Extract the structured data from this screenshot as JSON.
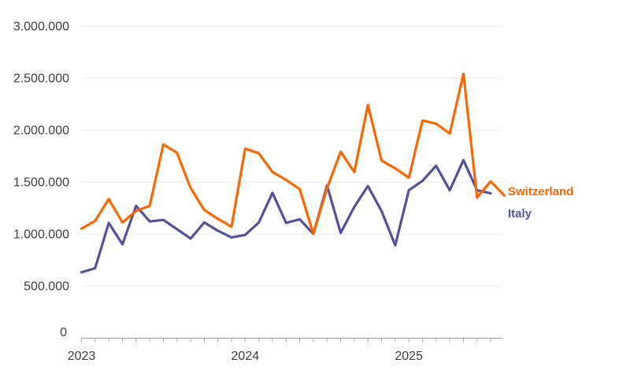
{
  "chart_data": {
    "type": "line",
    "title": "",
    "x_unit": "month",
    "x": [
      "2023-01",
      "2023-02",
      "2023-03",
      "2023-04",
      "2023-05",
      "2023-06",
      "2023-07",
      "2023-08",
      "2023-09",
      "2023-10",
      "2023-11",
      "2023-12",
      "2024-01",
      "2024-02",
      "2024-03",
      "2024-04",
      "2024-05",
      "2024-06",
      "2024-07",
      "2024-08",
      "2024-09",
      "2024-10",
      "2024-11",
      "2024-12",
      "2025-01",
      "2025-02",
      "2025-03",
      "2025-04",
      "2025-05",
      "2025-06",
      "2025-07",
      "2025-08"
    ],
    "series": [
      {
        "name": "Switzerland",
        "color": "#f96702",
        "values": [
          1050000,
          1125000,
          1335000,
          1110000,
          1220000,
          1270000,
          1860000,
          1780000,
          1440000,
          1230000,
          1145000,
          1070000,
          1820000,
          1775000,
          1595000,
          1520000,
          1430000,
          1000000,
          1440000,
          1790000,
          1595000,
          2240000,
          1705000,
          1630000,
          1540000,
          2090000,
          2060000,
          1965000,
          2540000,
          1350000,
          1505000,
          1370000
        ]
      },
      {
        "name": "Italy",
        "color": "#52519e",
        "values": [
          630000,
          670000,
          1105000,
          900000,
          1270000,
          1120000,
          1135000,
          1045000,
          955000,
          1110000,
          1030000,
          965000,
          990000,
          1110000,
          1395000,
          1105000,
          1140000,
          1000000,
          1465000,
          1010000,
          1260000,
          1460000,
          1220000,
          890000,
          1420000,
          1510000,
          1655000,
          1420000,
          1710000,
          1420000,
          1390000,
          null
        ]
      }
    ],
    "ylim": [
      0,
      3000000
    ],
    "ytick_step": 500000,
    "ytick_labels": [
      "0",
      "500.000",
      "1.000.000",
      "1.500.000",
      "2.000.000",
      "2.500.000",
      "3.000.000"
    ],
    "xtick_year_labels": [
      "2023",
      "2024",
      "2025"
    ],
    "grid": "horizontal-only",
    "legend_position": "right-of-line-ends"
  },
  "colors": {
    "background": "#ffffff",
    "grid": "#ededed",
    "axis": "#a8a8a8",
    "tick_label": "#3d3d3d"
  }
}
